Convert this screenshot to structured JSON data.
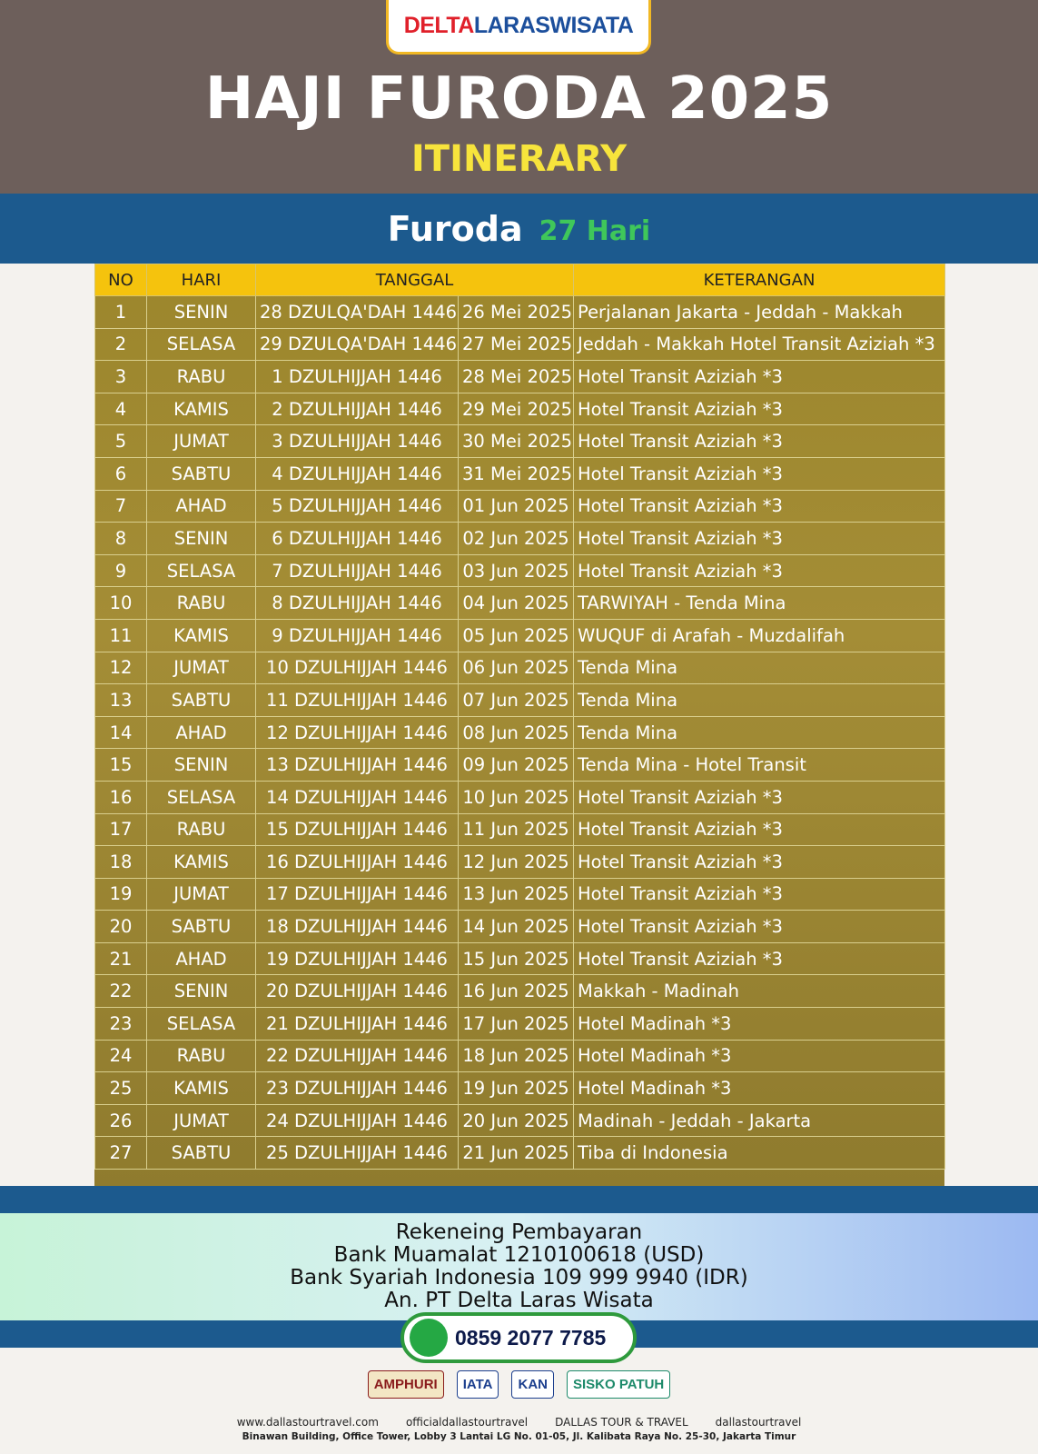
{
  "header": {
    "logo": {
      "part1": "DELTA",
      "part2": "LARASWISATA"
    },
    "title": "HAJI FURODA 2025",
    "subtitle": "ITINERARY"
  },
  "banner": {
    "title": "Furoda",
    "duration": "27 Hari"
  },
  "table": {
    "columns": [
      "NO",
      "HARI",
      "TANGGAL",
      "KETERANGAN"
    ],
    "rows": [
      [
        "1",
        "SENIN",
        "28 DZULQA'DAH 1446",
        "26 Mei 2025",
        "Perjalanan Jakarta - Jeddah - Makkah"
      ],
      [
        "2",
        "SELASA",
        "29 DZULQA'DAH 1446",
        "27 Mei 2025",
        "Jeddah - Makkah Hotel Transit Aziziah *3"
      ],
      [
        "3",
        "RABU",
        "1 DZULHIJJAH 1446",
        "28 Mei 2025",
        "Hotel Transit Aziziah *3"
      ],
      [
        "4",
        "KAMIS",
        "2 DZULHIJJAH 1446",
        "29 Mei 2025",
        "Hotel Transit Aziziah *3"
      ],
      [
        "5",
        "JUMAT",
        "3 DZULHIJJAH 1446",
        "30 Mei 2025",
        "Hotel Transit Aziziah *3"
      ],
      [
        "6",
        "SABTU",
        "4 DZULHIJJAH 1446",
        "31 Mei 2025",
        "Hotel Transit Aziziah *3"
      ],
      [
        "7",
        "AHAD",
        "5 DZULHIJJAH 1446",
        "01 Jun 2025",
        "Hotel Transit Aziziah *3"
      ],
      [
        "8",
        "SENIN",
        "6 DZULHIJJAH 1446",
        "02 Jun 2025",
        "Hotel Transit Aziziah *3"
      ],
      [
        "9",
        "SELASA",
        "7 DZULHIJJAH 1446",
        "03 Jun 2025",
        "Hotel Transit Aziziah *3"
      ],
      [
        "10",
        "RABU",
        "8 DZULHIJJAH 1446",
        "04 Jun 2025",
        "TARWIYAH - Tenda Mina"
      ],
      [
        "11",
        "KAMIS",
        "9 DZULHIJJAH 1446",
        "05 Jun 2025",
        "WUQUF di Arafah - Muzdalifah"
      ],
      [
        "12",
        "JUMAT",
        "10 DZULHIJJAH 1446",
        "06 Jun 2025",
        "Tenda Mina"
      ],
      [
        "13",
        "SABTU",
        "11 DZULHIJJAH 1446",
        "07 Jun 2025",
        "Tenda Mina"
      ],
      [
        "14",
        "AHAD",
        "12 DZULHIJJAH 1446",
        "08 Jun 2025",
        "Tenda Mina"
      ],
      [
        "15",
        "SENIN",
        "13 DZULHIJJAH 1446",
        "09 Jun 2025",
        "Tenda Mina - Hotel Transit"
      ],
      [
        "16",
        "SELASA",
        "14 DZULHIJJAH 1446",
        "10 Jun 2025",
        "Hotel Transit Aziziah *3"
      ],
      [
        "17",
        "RABU",
        "15 DZULHIJJAH 1446",
        "11 Jun 2025",
        "Hotel Transit Aziziah *3"
      ],
      [
        "18",
        "KAMIS",
        "16 DZULHIJJAH 1446",
        "12 Jun 2025",
        "Hotel Transit Aziziah *3"
      ],
      [
        "19",
        "JUMAT",
        "17 DZULHIJJAH 1446",
        "13 Jun 2025",
        "Hotel Transit Aziziah *3"
      ],
      [
        "20",
        "SABTU",
        "18 DZULHIJJAH 1446",
        "14 Jun 2025",
        "Hotel Transit Aziziah *3"
      ],
      [
        "21",
        "AHAD",
        "19 DZULHIJJAH 1446",
        "15 Jun 2025",
        "Hotel Transit Aziziah *3"
      ],
      [
        "22",
        "SENIN",
        "20 DZULHIJJAH 1446",
        "16 Jun 2025",
        "Makkah - Madinah"
      ],
      [
        "23",
        "SELASA",
        "21 DZULHIJJAH 1446",
        "17 Jun 2025",
        "Hotel Madinah *3"
      ],
      [
        "24",
        "RABU",
        "22 DZULHIJJAH 1446",
        "18 Jun 2025",
        "Hotel Madinah *3"
      ],
      [
        "25",
        "KAMIS",
        "23 DZULHIJJAH 1446",
        "19 Jun 2025",
        "Hotel Madinah *3"
      ],
      [
        "26",
        "JUMAT",
        "24 DZULHIJJAH 1446",
        "20 Jun 2025",
        "Madinah - Jeddah - Jakarta"
      ],
      [
        "27",
        "SABTU",
        "25 DZULHIJJAH 1446",
        "21 Jun 2025",
        "Tiba di Indonesia"
      ]
    ]
  },
  "payment": {
    "lines": [
      "Rekeneing Pembayaran",
      "Bank Muamalat 1210100618 (USD)",
      "Bank Syariah Indonesia 109 999 9940 (IDR)",
      "An. PT Delta Laras Wisata"
    ]
  },
  "phone": "0859 2077 7785",
  "logos": [
    "AMPHURI",
    "IATA",
    "KAN",
    "SISKO PATUH"
  ],
  "footer": {
    "links": [
      "www.dallastourtravel.com",
      "officialdallastourtravel",
      "DALLAS TOUR & TRAVEL",
      "dallastourtravel"
    ],
    "address": "Binawan Building, Office Tower, Lobby 3 Lantai LG No. 01-05, Jl. Kalibata Raya No. 25-30, Jakarta Timur"
  }
}
